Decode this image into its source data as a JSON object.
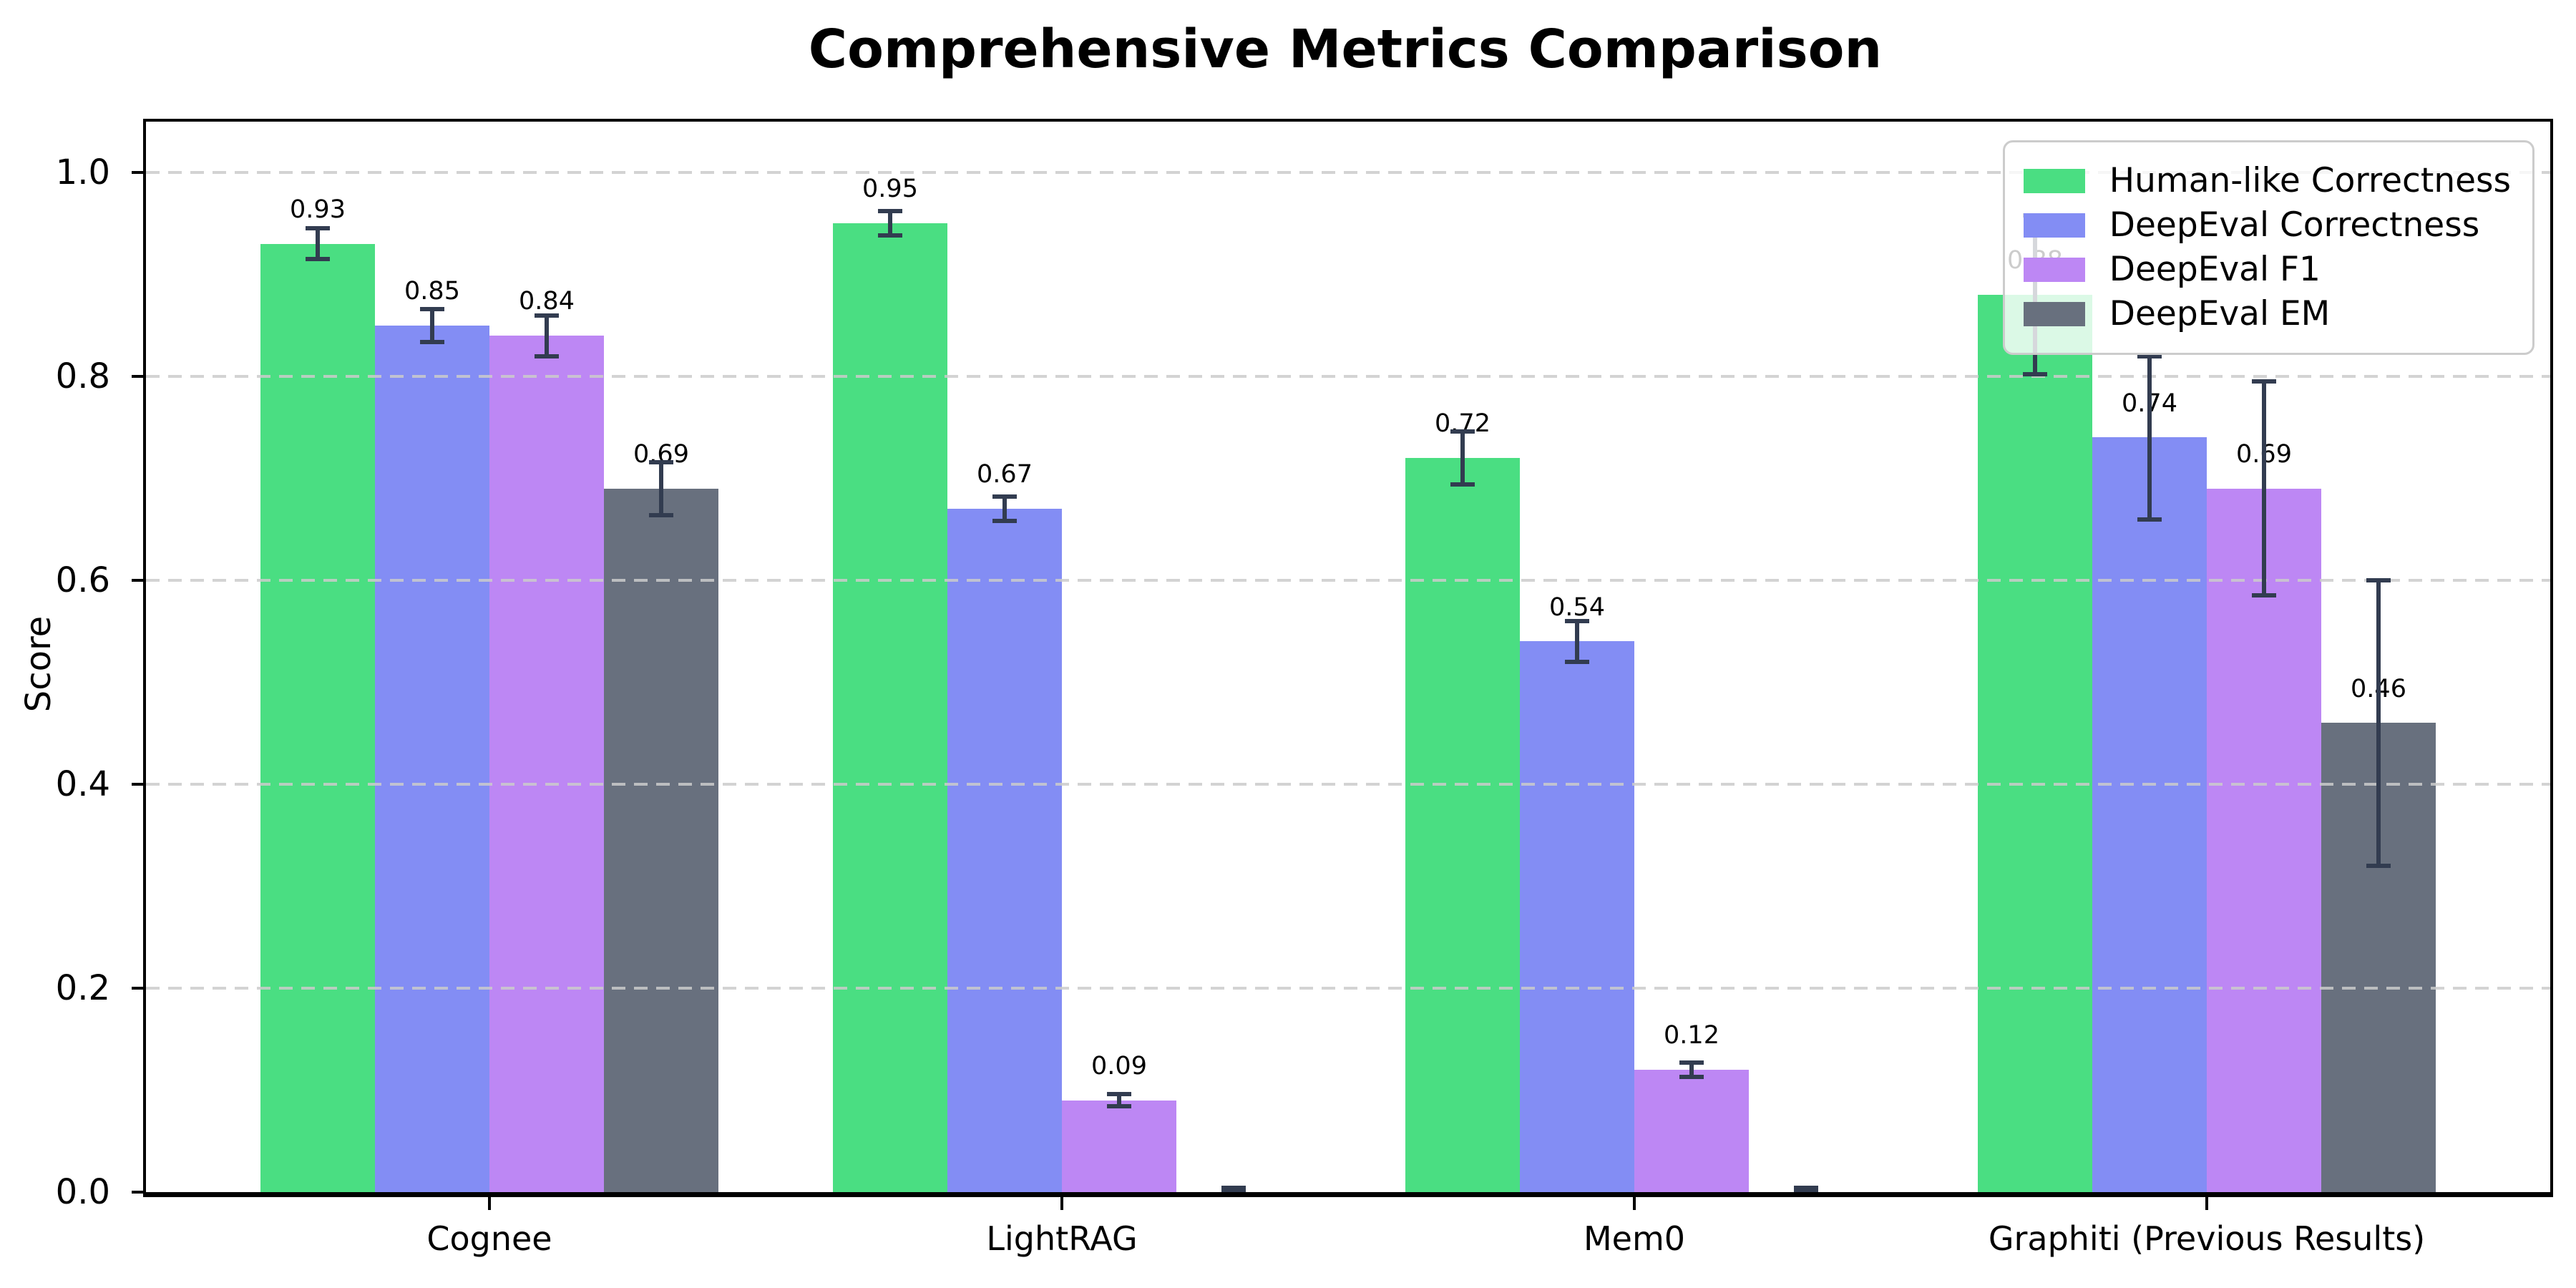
{
  "chart_data": {
    "type": "bar",
    "title": "Comprehensive Metrics Comparison",
    "xlabel": "",
    "ylabel": "Score",
    "categories": [
      "Cognee",
      "LightRAG",
      "Mem0",
      "Graphiti (Previous Results)"
    ],
    "series": [
      {
        "name": "Human-like Correctness",
        "color": "#4ade82",
        "values": [
          0.93,
          0.95,
          0.72,
          0.88
        ],
        "errors": [
          0.015,
          0.012,
          0.026,
          0.078
        ],
        "labels": [
          "0.93",
          "0.95",
          "0.72",
          "0.88"
        ]
      },
      {
        "name": "DeepEval Correctness",
        "color": "#838df4",
        "values": [
          0.85,
          0.67,
          0.54,
          0.74
        ],
        "errors": [
          0.016,
          0.012,
          0.02,
          0.08
        ],
        "labels": [
          "0.85",
          "0.67",
          "0.54",
          "0.74"
        ]
      },
      {
        "name": "DeepEval F1",
        "color": "#bd87f4",
        "values": [
          0.84,
          0.09,
          0.12,
          0.69
        ],
        "errors": [
          0.02,
          0.006,
          0.007,
          0.105
        ],
        "labels": [
          "0.84",
          "0.09",
          "0.12",
          "0.69"
        ]
      },
      {
        "name": "DeepEval EM",
        "color": "#68707e",
        "values": [
          0.69,
          0.0,
          0.0,
          0.46
        ],
        "errors": [
          0.026,
          0.004,
          0.004,
          0.14
        ],
        "labels": [
          "0.69",
          "",
          "",
          "0.46"
        ]
      }
    ],
    "yticks": [
      "0.0",
      "0.2",
      "0.4",
      "0.6",
      "0.8",
      "1.0"
    ],
    "ylim": [
      0,
      1.05
    ],
    "grid": "horizontal-dashed",
    "legend_position": "upper-right",
    "errorbar_color": "#323c50",
    "grid_color": "#cbcbcb",
    "background_color": "#ffffff"
  }
}
